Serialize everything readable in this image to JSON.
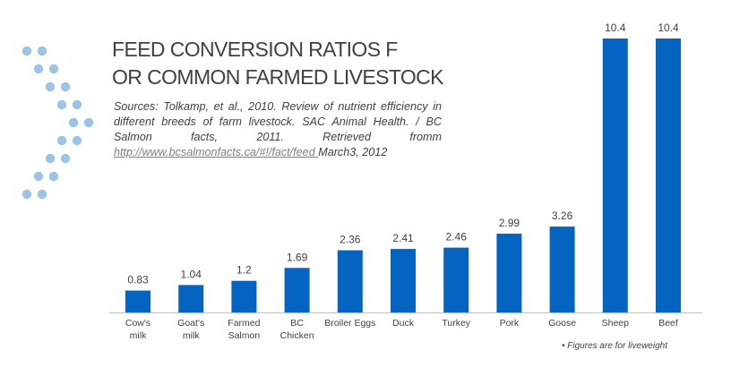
{
  "title_lines": [
    "FEED CONVERSION RATIOS F",
    "OR COMMON FARMED LIVESTOCK"
  ],
  "sources": {
    "text": "Sources: Tolkamp, et al., 2010. Review of nutrient efficiency in different breeds  of farm livestock. SAC Animal Health. / BC Salmon facts, 2011. Retrieved fromm ",
    "link_text": "http://www.bcsalmonfacts.ca/#!/fact/feed ",
    "after_link": "March3, 2012"
  },
  "footnote": "• Figures are for  liveweight",
  "colors": {
    "bar": "#0563C1",
    "axis": "#bfbfbf",
    "dots": "#9DC3E6",
    "text": "#404040"
  },
  "chart_data": {
    "type": "bar",
    "categories": [
      [
        "Cow's",
        "milk"
      ],
      [
        "Goat's",
        "milk"
      ],
      [
        "Farmed",
        "Salmon"
      ],
      [
        "BC",
        "Chicken"
      ],
      [
        "Broiler Eggs"
      ],
      [
        "Duck"
      ],
      [
        "Turkey"
      ],
      [
        "Pork"
      ],
      [
        "Goose"
      ],
      [
        "Sheep"
      ],
      [
        "Beef"
      ]
    ],
    "values": [
      0.83,
      1.04,
      1.2,
      1.69,
      2.36,
      2.41,
      2.46,
      2.99,
      3.26,
      10.4,
      10.4
    ],
    "data_labels": [
      "0.83",
      "1.04",
      "1.2",
      "1.69",
      "2.36",
      "2.41",
      "2.46",
      "2.99",
      "3.26",
      "10.4",
      "10.4"
    ],
    "ylim": [
      0,
      10.4
    ],
    "grid": false,
    "legend": "none"
  }
}
